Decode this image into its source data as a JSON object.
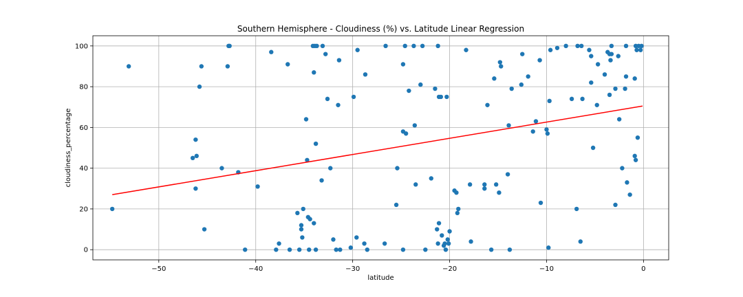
{
  "chart_data": {
    "type": "scatter",
    "title": "Southern Hemisphere - Cloudiness (%) vs. Latitude Linear Regression",
    "xlabel": "latitude",
    "ylabel": "cloudiness_percentage",
    "xlim": [
      -56.8,
      2.6
    ],
    "ylim": [
      -5,
      105
    ],
    "xticks": [
      -50,
      -40,
      -30,
      -20,
      -10,
      0
    ],
    "yticks": [
      0,
      20,
      40,
      60,
      80,
      100
    ],
    "grid": true,
    "point_color": "#1f77b4",
    "line_color": "#ff0000",
    "regression": {
      "x": [
        -54.8,
        -0.1
      ],
      "y": [
        27,
        70.5
      ]
    },
    "points": [
      [
        -54.8,
        20
      ],
      [
        -53.1,
        90
      ],
      [
        -46.5,
        45
      ],
      [
        -46.1,
        46
      ],
      [
        -46.2,
        54
      ],
      [
        -46.2,
        30
      ],
      [
        -45.8,
        80
      ],
      [
        -45.6,
        90
      ],
      [
        -45.3,
        10
      ],
      [
        -43.5,
        40
      ],
      [
        -42.9,
        90
      ],
      [
        -42.8,
        100
      ],
      [
        -42.7,
        100
      ],
      [
        -41.8,
        38
      ],
      [
        -41.1,
        0
      ],
      [
        -39.8,
        31
      ],
      [
        -38.4,
        97
      ],
      [
        -37.9,
        0
      ],
      [
        -37.6,
        3
      ],
      [
        -36.7,
        91
      ],
      [
        -36.5,
        0
      ],
      [
        -35.7,
        18
      ],
      [
        -35.5,
        0
      ],
      [
        -35.3,
        10
      ],
      [
        -35.3,
        12
      ],
      [
        -35.2,
        6
      ],
      [
        -35.1,
        20
      ],
      [
        -34.8,
        64
      ],
      [
        -34.7,
        44
      ],
      [
        -34.6,
        16
      ],
      [
        -34.5,
        0
      ],
      [
        -34.4,
        15
      ],
      [
        -34.1,
        100
      ],
      [
        -34.0,
        87
      ],
      [
        -34.0,
        13
      ],
      [
        -33.9,
        100
      ],
      [
        -33.8,
        52
      ],
      [
        -33.7,
        100
      ],
      [
        -33.8,
        0
      ],
      [
        -33.2,
        34
      ],
      [
        -33.1,
        100
      ],
      [
        -32.8,
        96
      ],
      [
        -32.6,
        74
      ],
      [
        -32.3,
        40
      ],
      [
        -32.0,
        5
      ],
      [
        -31.7,
        0
      ],
      [
        -31.5,
        71
      ],
      [
        -31.4,
        93
      ],
      [
        -31.3,
        0
      ],
      [
        -30.2,
        1
      ],
      [
        -29.9,
        75
      ],
      [
        -29.6,
        6
      ],
      [
        -29.5,
        98
      ],
      [
        -28.8,
        3
      ],
      [
        -28.7,
        86
      ],
      [
        -28.5,
        0
      ],
      [
        -26.6,
        100
      ],
      [
        -26.7,
        3
      ],
      [
        -25.4,
        40
      ],
      [
        -25.5,
        22
      ],
      [
        -24.8,
        91
      ],
      [
        -24.8,
        58
      ],
      [
        -24.6,
        100
      ],
      [
        -24.5,
        57
      ],
      [
        -24.2,
        78
      ],
      [
        -24.8,
        0
      ],
      [
        -23.7,
        100
      ],
      [
        -23.6,
        61
      ],
      [
        -23.5,
        32
      ],
      [
        -23.0,
        81
      ],
      [
        -22.8,
        100
      ],
      [
        -22.5,
        0
      ],
      [
        -21.9,
        35
      ],
      [
        -21.5,
        79
      ],
      [
        -21.3,
        10
      ],
      [
        -21.2,
        100
      ],
      [
        -21.1,
        75
      ],
      [
        -21.1,
        13
      ],
      [
        -21.2,
        3
      ],
      [
        -20.9,
        75
      ],
      [
        -20.8,
        7
      ],
      [
        -20.6,
        2
      ],
      [
        -20.5,
        3
      ],
      [
        -20.4,
        0
      ],
      [
        -20.3,
        75
      ],
      [
        -20.2,
        5
      ],
      [
        -20.1,
        3
      ],
      [
        -20.0,
        9
      ],
      [
        -19.5,
        29
      ],
      [
        -19.3,
        28
      ],
      [
        -19.2,
        18
      ],
      [
        -19.1,
        20
      ],
      [
        -18.3,
        98
      ],
      [
        -17.9,
        32
      ],
      [
        -17.8,
        4
      ],
      [
        -16.4,
        32
      ],
      [
        -16.4,
        30
      ],
      [
        -16.1,
        71
      ],
      [
        -15.7,
        0
      ],
      [
        -15.4,
        84
      ],
      [
        -15.2,
        32
      ],
      [
        -14.9,
        28
      ],
      [
        -14.8,
        92
      ],
      [
        -14.7,
        90
      ],
      [
        -14.0,
        37
      ],
      [
        -13.9,
        61
      ],
      [
        -13.8,
        0
      ],
      [
        -13.6,
        79
      ],
      [
        -12.6,
        81
      ],
      [
        -12.5,
        96
      ],
      [
        -11.9,
        85
      ],
      [
        -11.4,
        58
      ],
      [
        -11.1,
        63
      ],
      [
        -10.7,
        93
      ],
      [
        -10.6,
        23
      ],
      [
        -10.0,
        59
      ],
      [
        -9.9,
        57
      ],
      [
        -9.8,
        1
      ],
      [
        -9.7,
        73
      ],
      [
        -9.6,
        98
      ],
      [
        -8.9,
        99
      ],
      [
        -8.0,
        100
      ],
      [
        -7.4,
        74
      ],
      [
        -6.9,
        20
      ],
      [
        -6.8,
        100
      ],
      [
        -6.4,
        100
      ],
      [
        -6.5,
        4
      ],
      [
        -6.3,
        74
      ],
      [
        -5.6,
        98
      ],
      [
        -5.4,
        95
      ],
      [
        -5.4,
        82
      ],
      [
        -5.2,
        50
      ],
      [
        -4.8,
        71
      ],
      [
        -4.7,
        91
      ],
      [
        -4.0,
        86
      ],
      [
        -3.7,
        97
      ],
      [
        -3.5,
        76
      ],
      [
        -3.4,
        93
      ],
      [
        -3.3,
        96
      ],
      [
        -3.3,
        100
      ],
      [
        -3.5,
        96
      ],
      [
        -2.9,
        79
      ],
      [
        -2.9,
        22
      ],
      [
        -2.6,
        95
      ],
      [
        -2.5,
        64
      ],
      [
        -2.2,
        40
      ],
      [
        -1.9,
        79
      ],
      [
        -1.8,
        85
      ],
      [
        -1.7,
        33
      ],
      [
        -1.8,
        100
      ],
      [
        -1.4,
        27
      ],
      [
        -0.9,
        46
      ],
      [
        -0.8,
        44
      ],
      [
        -0.7,
        98
      ],
      [
        -0.6,
        55
      ],
      [
        -0.9,
        84
      ],
      [
        -0.8,
        100
      ],
      [
        -0.5,
        100
      ],
      [
        -0.3,
        98
      ],
      [
        -0.2,
        100
      ]
    ]
  }
}
